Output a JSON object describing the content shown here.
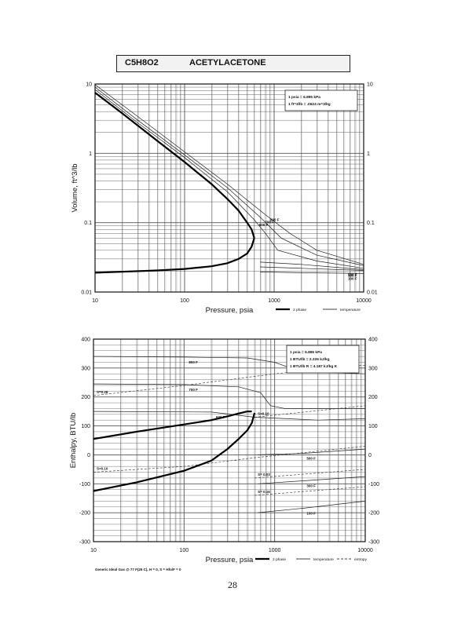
{
  "header": {
    "formula": "C5H8O2",
    "compound": "ACETYLACETONE"
  },
  "page_number": "28",
  "chart_data": [
    {
      "type": "line",
      "xlabel": "Pressure,  psia",
      "ylabel": "Volume, ft^3/lb",
      "x_scale": "log",
      "y_scale": "log",
      "xlim": [
        10,
        10000
      ],
      "ylim": [
        0.01,
        10
      ],
      "x_ticks": [
        "10",
        "100",
        "1000",
        "10000"
      ],
      "y_ticks": [
        "0.01",
        "0.1",
        "1",
        "10"
      ],
      "grid": true,
      "conversion_box": [
        "1 psia  =  6.895 kPa",
        "1 ft^3/lb  =  .0624 m^3/kg"
      ],
      "legend_labels": [
        "2 phase",
        "temperature"
      ],
      "legend_position": "bottom-right",
      "series": [
        {
          "name": "2 phase",
          "kind": "saturated-vapor",
          "x": [
            10,
            20,
            50,
            100,
            200,
            300,
            400,
            500,
            560,
            600
          ],
          "y": [
            7.5,
            3.8,
            1.5,
            0.75,
            0.36,
            0.22,
            0.15,
            0.1,
            0.08,
            0.06
          ]
        },
        {
          "name": "2 phase",
          "kind": "saturated-liquid",
          "x": [
            10,
            50,
            100,
            200,
            300,
            400,
            500,
            560,
            600
          ],
          "y": [
            0.019,
            0.0205,
            0.0215,
            0.0235,
            0.026,
            0.03,
            0.036,
            0.045,
            0.06
          ]
        }
      ],
      "isotherms": [
        {
          "label": "800 F",
          "x": [
            10,
            30,
            100,
            300,
            800,
            1500,
            3000,
            10000
          ],
          "y": [
            9.8,
            3.4,
            1.05,
            0.36,
            0.13,
            0.07,
            0.04,
            0.025
          ]
        },
        {
          "label": "700 F",
          "x": [
            10,
            30,
            100,
            300,
            700,
            1200,
            3000,
            10000
          ],
          "y": [
            9.0,
            3.0,
            0.95,
            0.32,
            0.12,
            0.06,
            0.034,
            0.024
          ]
        },
        {
          "label": "600 F",
          "x": [
            10,
            30,
            100,
            300,
            600,
            800,
            1100,
            3000,
            10000
          ],
          "y": [
            8.3,
            2.75,
            0.87,
            0.28,
            0.11,
            0.07,
            0.04,
            0.028,
            0.022
          ]
        },
        {
          "label": "500 F",
          "x": [
            700,
            2000,
            10000
          ],
          "y": [
            0.027,
            0.025,
            0.021
          ]
        },
        {
          "label": "300 F",
          "x": [
            700,
            2000,
            10000
          ],
          "y": [
            0.023,
            0.022,
            0.0205
          ]
        },
        {
          "label": "100 F",
          "x": [
            700,
            2000,
            10000
          ],
          "y": [
            0.0195,
            0.019,
            0.0185
          ]
        }
      ]
    },
    {
      "type": "line",
      "xlabel": "Pressure,  psia",
      "ylabel": "Enthalpy, BTU/lb",
      "x_scale": "log",
      "xlim": [
        10,
        10000
      ],
      "ylim": [
        -300,
        400
      ],
      "x_ticks": [
        "10",
        "100",
        "1000",
        "10000"
      ],
      "y_ticks": [
        "-300",
        "-200",
        "-100",
        "0",
        "100",
        "200",
        "300",
        "400"
      ],
      "grid": true,
      "conversion_box": [
        "1 psia  =  6.895 kPa",
        "1 BTU/lb  =  2.326 kJ/kg",
        "1 BTU/lb R  =  4.187 kJ/kg K"
      ],
      "footnote": "Generic Ideal Gas @ 77 F(25 C),  H  =  0,  S  =  Hfo/F  =  0",
      "legend_labels": [
        "2 phase",
        "temperature",
        "entropy"
      ],
      "legend_position": "bottom-right",
      "series": [
        {
          "name": "2 phase",
          "kind": "saturated-vapor",
          "x": [
            10,
            30,
            100,
            200,
            300,
            400,
            500,
            560
          ],
          "y": [
            55,
            80,
            105,
            120,
            133,
            143,
            150,
            150
          ]
        },
        {
          "name": "2 phase",
          "kind": "saturated-liquid",
          "x": [
            10,
            30,
            100,
            200,
            300,
            400,
            500,
            560,
            600
          ],
          "y": [
            -125,
            -95,
            -55,
            -20,
            20,
            55,
            85,
            110,
            145
          ]
        }
      ],
      "isotherms": [
        {
          "label": "800 F",
          "x": [
            10,
            100,
            500,
            1000,
            1500,
            3000,
            10000
          ],
          "y": [
            340,
            338,
            335,
            320,
            300,
            285,
            280
          ]
        },
        {
          "label": "700 F",
          "x": [
            10,
            100,
            400,
            700,
            900,
            1300,
            3000,
            10000
          ],
          "y": [
            245,
            243,
            235,
            215,
            170,
            160,
            160,
            160
          ]
        },
        {
          "label": "600 F",
          "x": [
            10,
            200,
            600,
            3000,
            10000
          ],
          "y": [
            150,
            148,
            130,
            120,
            125
          ]
        },
        {
          "label": "500 F",
          "x": [
            650,
            2000,
            10000
          ],
          "y": [
            0,
            5,
            20
          ]
        },
        {
          "label": "300 F",
          "x": [
            650,
            2000,
            10000
          ],
          "y": [
            -100,
            -90,
            -75
          ]
        },
        {
          "label": "100 F",
          "x": [
            650,
            2000,
            10000
          ],
          "y": [
            -200,
            -185,
            -160
          ]
        }
      ],
      "entropy_lines": [
        {
          "label": "S=0.28",
          "x": [
            10,
            100,
            1000,
            10000
          ],
          "y": [
            205,
            240,
            280,
            310
          ]
        },
        {
          "label": "S=0.10",
          "x": [
            600,
            10000
          ],
          "y": [
            130,
            170
          ]
        },
        {
          "label": "S=0.10",
          "x": [
            10,
            100,
            600,
            10000
          ],
          "y": [
            -60,
            -40,
            -10,
            30
          ]
        },
        {
          "label": "S= 0.03",
          "x": [
            600,
            10000
          ],
          "y": [
            -80,
            -50
          ]
        },
        {
          "label": "S= 0.16",
          "x": [
            600,
            10000
          ],
          "y": [
            -140,
            -110
          ]
        }
      ]
    }
  ]
}
